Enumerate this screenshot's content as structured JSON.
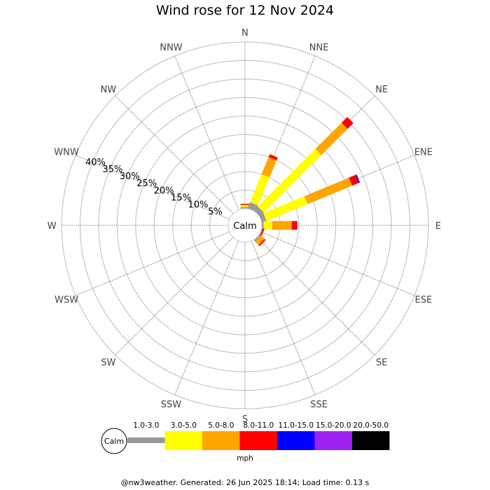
{
  "chart_data": {
    "type": "wind-rose",
    "title": "Wind rose for 12 Nov 2024",
    "directions": [
      "N",
      "NNE",
      "NE",
      "ENE",
      "E",
      "ESE",
      "SE",
      "SSE",
      "S",
      "SSW",
      "SW",
      "WSW",
      "W",
      "WNW",
      "NW",
      "NNW"
    ],
    "radial_ticks": [
      "5%",
      "10%",
      "15%",
      "20%",
      "25%",
      "30%",
      "35%",
      "40%"
    ],
    "radial_max_percent": 45,
    "calm_label": "Calm",
    "speed_unit": "mph",
    "legend_position": "bottom",
    "speed_bins": [
      {
        "label": "1.0-3.0",
        "color": "#999999"
      },
      {
        "label": "3.0-5.0",
        "color": "#ffff00"
      },
      {
        "label": "5.0-8.0",
        "color": "#ffa500"
      },
      {
        "label": "8.0-11.0",
        "color": "#ff0000"
      },
      {
        "label": "11.0-15.0",
        "color": "#0000ff"
      },
      {
        "label": "15.0-20.0",
        "color": "#a020f0"
      },
      {
        "label": "20.0-50.0",
        "color": "#000000"
      }
    ],
    "series": [
      {
        "direction": "N",
        "values": [
          0.4,
          0.6,
          0.0,
          0.3,
          0.0,
          0.0,
          0.0
        ]
      },
      {
        "direction": "NNE",
        "values": [
          1.8,
          8.2,
          5.0,
          0.8,
          0.0,
          0.0,
          0.0
        ]
      },
      {
        "direction": "NE",
        "values": [
          1.5,
          22.0,
          10.0,
          2.2,
          0.0,
          0.0,
          0.0
        ]
      },
      {
        "direction": "ENE",
        "values": [
          1.3,
          12.0,
          13.0,
          2.0,
          0.3,
          0.0,
          0.0
        ]
      },
      {
        "direction": "E",
        "values": [
          0.5,
          2.3,
          5.3,
          1.5,
          0.0,
          0.0,
          0.0
        ]
      },
      {
        "direction": "ESE",
        "values": [
          0.3,
          0.0,
          0.0,
          0.4,
          0.0,
          0.0,
          0.0
        ]
      },
      {
        "direction": "SE",
        "values": [
          0.5,
          0.0,
          1.3,
          0.4,
          0.0,
          0.0,
          0.0
        ]
      },
      {
        "direction": "SSE",
        "values": [
          0.0,
          0.0,
          0.0,
          0.0,
          0.0,
          0.0,
          0.0
        ]
      },
      {
        "direction": "S",
        "values": [
          0.0,
          0.0,
          0.0,
          0.0,
          0.0,
          0.0,
          0.0
        ]
      },
      {
        "direction": "SSW",
        "values": [
          0.0,
          0.0,
          0.0,
          0.0,
          0.0,
          0.0,
          0.0
        ]
      },
      {
        "direction": "SW",
        "values": [
          0.0,
          0.0,
          0.0,
          0.0,
          0.0,
          0.0,
          0.0
        ]
      },
      {
        "direction": "WSW",
        "values": [
          0.0,
          0.0,
          0.0,
          0.0,
          0.0,
          0.0,
          0.0
        ]
      },
      {
        "direction": "W",
        "values": [
          0.0,
          0.0,
          0.0,
          0.0,
          0.0,
          0.0,
          0.0
        ]
      },
      {
        "direction": "WNW",
        "values": [
          0.0,
          0.0,
          0.0,
          0.0,
          0.0,
          0.0,
          0.0
        ]
      },
      {
        "direction": "NW",
        "values": [
          0.0,
          0.0,
          0.0,
          0.0,
          0.0,
          0.0,
          0.0
        ]
      },
      {
        "direction": "NNW",
        "values": [
          0.0,
          0.0,
          0.0,
          0.0,
          0.0,
          0.0,
          0.0
        ]
      }
    ]
  },
  "footer": "@nw3weather. Generated: 26 Jun 2025 18:14; Load time: 0.13 s"
}
